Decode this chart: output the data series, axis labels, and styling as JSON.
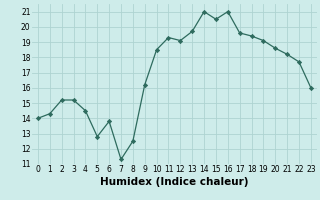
{
  "x": [
    0,
    1,
    2,
    3,
    4,
    5,
    6,
    7,
    8,
    9,
    10,
    11,
    12,
    13,
    14,
    15,
    16,
    17,
    18,
    19,
    20,
    21,
    22,
    23
  ],
  "y": [
    14.0,
    14.3,
    15.2,
    15.2,
    14.5,
    12.8,
    13.8,
    11.3,
    12.5,
    16.2,
    18.5,
    19.3,
    19.1,
    19.7,
    21.0,
    20.5,
    21.0,
    19.6,
    19.4,
    19.1,
    18.6,
    18.2,
    17.7,
    16.0
  ],
  "xlabel": "Humidex (Indice chaleur)",
  "ylim": [
    11,
    21.5
  ],
  "xlim": [
    -0.5,
    23.5
  ],
  "yticks": [
    11,
    12,
    13,
    14,
    15,
    16,
    17,
    18,
    19,
    20,
    21
  ],
  "xticks": [
    0,
    1,
    2,
    3,
    4,
    5,
    6,
    7,
    8,
    9,
    10,
    11,
    12,
    13,
    14,
    15,
    16,
    17,
    18,
    19,
    20,
    21,
    22,
    23
  ],
  "line_color": "#2e6b5e",
  "marker": "D",
  "marker_size": 2.2,
  "bg_color": "#ceecea",
  "grid_color": "#aed4d1",
  "tick_fontsize": 5.5,
  "xlabel_fontsize": 7.5
}
